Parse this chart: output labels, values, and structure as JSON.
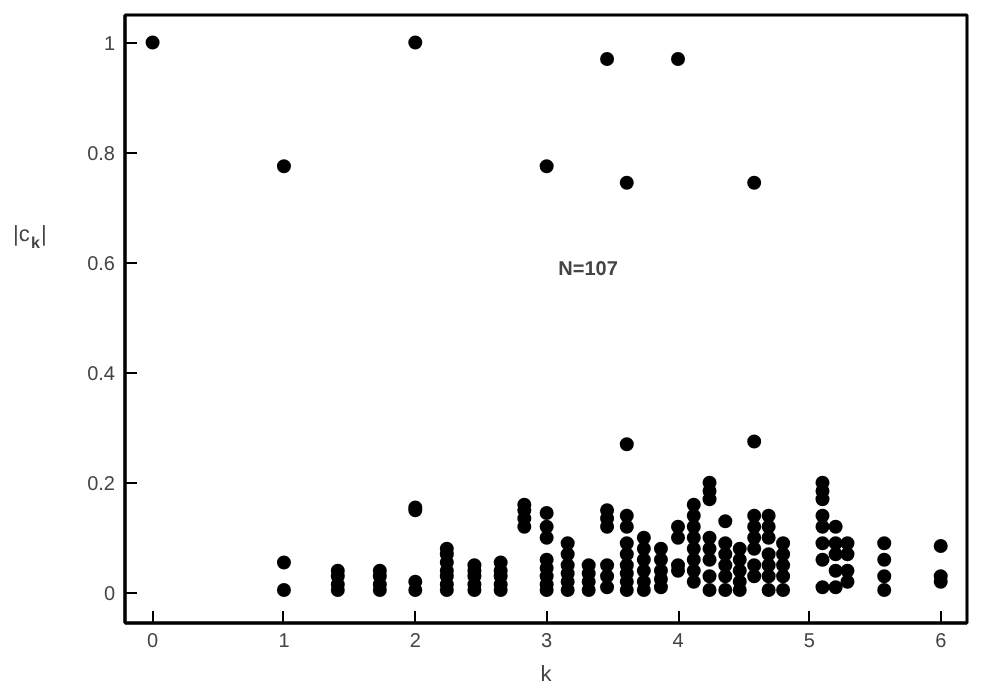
{
  "chart_data": {
    "type": "scatter",
    "xlabel": "k",
    "ylabel": "|c$_{k}$|",
    "annotations": [
      "N=107"
    ],
    "series": [
      {
        "color": "#000000",
        "x": [
          0,
          1,
          1,
          1,
          1.41,
          1.41,
          1.41,
          1.41,
          1.73,
          1.73,
          1.73,
          1.73,
          2,
          2,
          2,
          2,
          2,
          2.24,
          2.24,
          2.24,
          2.24,
          2.24,
          2.24,
          2.24,
          2.45,
          2.45,
          2.45,
          2.45,
          2.45,
          2.65,
          2.65,
          2.65,
          2.65,
          2.65,
          2.83,
          2.83,
          2.83,
          2.83,
          3,
          3,
          3,
          3,
          3,
          3,
          3,
          3,
          3,
          3.16,
          3.16,
          3.16,
          3.16,
          3.16,
          3.16,
          3.32,
          3.32,
          3.32,
          3.32,
          3.46,
          3.46,
          3.46,
          3.46,
          3.46,
          3.46,
          3.46,
          3.61,
          3.61,
          3.61,
          3.61,
          3.61,
          3.61,
          3.61,
          3.61,
          3.61,
          3.61,
          3.74,
          3.74,
          3.74,
          3.74,
          3.74,
          3.74,
          3.87,
          3.87,
          3.87,
          3.87,
          3.87,
          4,
          4,
          4,
          4,
          4,
          4.12,
          4.12,
          4.12,
          4.12,
          4.12,
          4.12,
          4.12,
          4.12,
          4.24,
          4.24,
          4.24,
          4.24,
          4.24,
          4.24,
          4.24,
          4.24,
          4.36,
          4.36,
          4.36,
          4.36,
          4.36,
          4.36,
          4.47,
          4.47,
          4.47,
          4.47,
          4.47,
          4.58,
          4.58,
          4.58,
          4.58,
          4.58,
          4.58,
          4.58,
          4.58,
          4.69,
          4.69,
          4.69,
          4.69,
          4.69,
          4.69,
          4.69,
          4.8,
          4.8,
          4.8,
          4.8,
          4.8,
          5.1,
          5.1,
          5.1,
          5.1,
          5.1,
          5.1,
          5.1,
          5.1,
          5.2,
          5.2,
          5.2,
          5.2,
          5.2,
          5.29,
          5.29,
          5.29,
          5.29,
          5.57,
          5.57,
          5.57,
          5.57,
          6,
          6,
          6
        ],
        "values": [
          1,
          0.775,
          0.055,
          0.005,
          0.04,
          0.03,
          0.015,
          0.005,
          0.04,
          0.03,
          0.015,
          0.005,
          1,
          0.155,
          0.15,
          0.02,
          0.005,
          0.08,
          0.07,
          0.055,
          0.04,
          0.03,
          0.015,
          0.005,
          0.05,
          0.04,
          0.03,
          0.015,
          0.005,
          0.055,
          0.04,
          0.03,
          0.015,
          0.005,
          0.16,
          0.15,
          0.135,
          0.12,
          0.775,
          0.145,
          0.12,
          0.1,
          0.06,
          0.045,
          0.03,
          0.015,
          0.005,
          0.09,
          0.07,
          0.05,
          0.035,
          0.02,
          0.005,
          0.05,
          0.035,
          0.02,
          0.005,
          0.97,
          0.15,
          0.135,
          0.12,
          0.05,
          0.03,
          0.01,
          0.745,
          0.27,
          0.14,
          0.12,
          0.09,
          0.07,
          0.05,
          0.035,
          0.02,
          0.005,
          0.1,
          0.08,
          0.06,
          0.04,
          0.02,
          0.005,
          0.08,
          0.06,
          0.04,
          0.025,
          0.01,
          0.97,
          0.12,
          0.1,
          0.05,
          0.04,
          0.16,
          0.14,
          0.12,
          0.1,
          0.08,
          0.06,
          0.04,
          0.02,
          0.2,
          0.185,
          0.17,
          0.1,
          0.08,
          0.06,
          0.03,
          0.005,
          0.13,
          0.09,
          0.07,
          0.05,
          0.03,
          0.005,
          0.08,
          0.06,
          0.04,
          0.02,
          0.005,
          0.745,
          0.275,
          0.14,
          0.12,
          0.1,
          0.08,
          0.05,
          0.03,
          0.14,
          0.12,
          0.1,
          0.07,
          0.05,
          0.03,
          0.005,
          0.09,
          0.07,
          0.05,
          0.03,
          0.005,
          0.2,
          0.185,
          0.17,
          0.14,
          0.12,
          0.09,
          0.06,
          0.01,
          0.12,
          0.09,
          0.07,
          0.04,
          0.01,
          0.09,
          0.07,
          0.04,
          0.02,
          0.09,
          0.06,
          0.03,
          0.005,
          0.085,
          0.03,
          0.02
        ]
      }
    ],
    "xlim": [
      -0.21,
      6.2
    ],
    "ylim": [
      -0.055,
      1.05
    ],
    "xticks": [
      0,
      1,
      2,
      3,
      4,
      5,
      6
    ],
    "yticks": [
      0,
      0.2,
      0.4,
      0.6,
      0.8,
      1
    ],
    "marker": "circle",
    "grid": false
  }
}
